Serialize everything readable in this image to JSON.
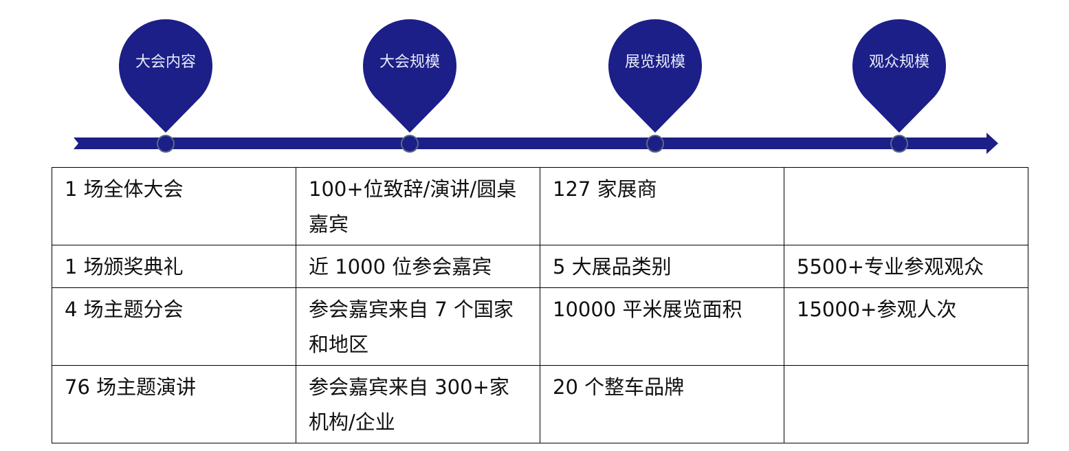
{
  "colors": {
    "accent": "#1c1f87",
    "node_border": "#5a6a80"
  },
  "pins": [
    {
      "label": "大会内容",
      "icon": "map-pin-icon"
    },
    {
      "label": "大会规模",
      "icon": "map-pin-icon"
    },
    {
      "label": "展览规模",
      "icon": "map-pin-icon"
    },
    {
      "label": "观众规模",
      "icon": "map-pin-icon"
    }
  ],
  "table": {
    "rows": [
      [
        "1 场全体大会",
        "100+位致辞/演讲/圆桌嘉宾",
        "127 家展商",
        ""
      ],
      [
        "1 场颁奖典礼",
        "近 1000 位参会嘉宾",
        "5 大展品类别",
        "5500+专业参观观众"
      ],
      [
        "4 场主题分会",
        "参会嘉宾来自 7 个国家和地区",
        "10000 平米展览面积",
        "15000+参观人次"
      ],
      [
        "76 场主题演讲",
        "参会嘉宾来自 300+家机构/企业",
        "20 个整车品牌",
        ""
      ]
    ]
  }
}
